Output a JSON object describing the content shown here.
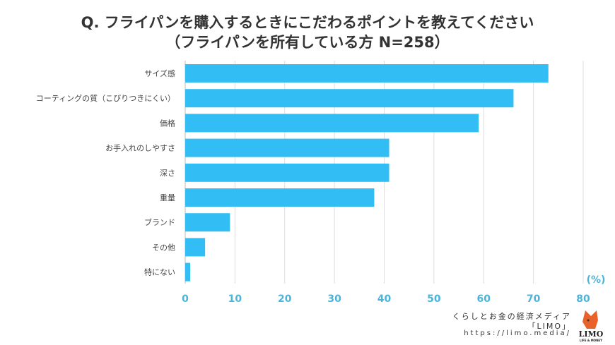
{
  "title_line1": "Q. フライパンを購入するときにこだわるポイントを教えてください",
  "title_line2": "（フライパンを所有している方 N=258）",
  "chart_data": {
    "type": "bar",
    "orientation": "horizontal",
    "categories": [
      "サイズ感",
      "コーティングの質（こびりつきにくい）",
      "価格",
      "お手入れのしやすさ",
      "深さ",
      "重量",
      "ブランド",
      "その他",
      "特にない"
    ],
    "values": [
      73,
      66,
      59,
      41,
      41,
      38,
      9,
      4,
      1
    ],
    "xlabel": "(%)",
    "xlim": [
      0,
      80
    ],
    "xticks": [
      0,
      10,
      20,
      30,
      40,
      50,
      60,
      70,
      80
    ],
    "grid": true,
    "bar_color": "#33bdf5",
    "tick_color": "#4cb4d8"
  },
  "source": {
    "line1": "くらしとお金の経済メディア",
    "line2": "「LIMO」",
    "url": "https://limo.media/",
    "logo_text": "LIMO",
    "logo_sub": "LIFE & MONEY"
  }
}
